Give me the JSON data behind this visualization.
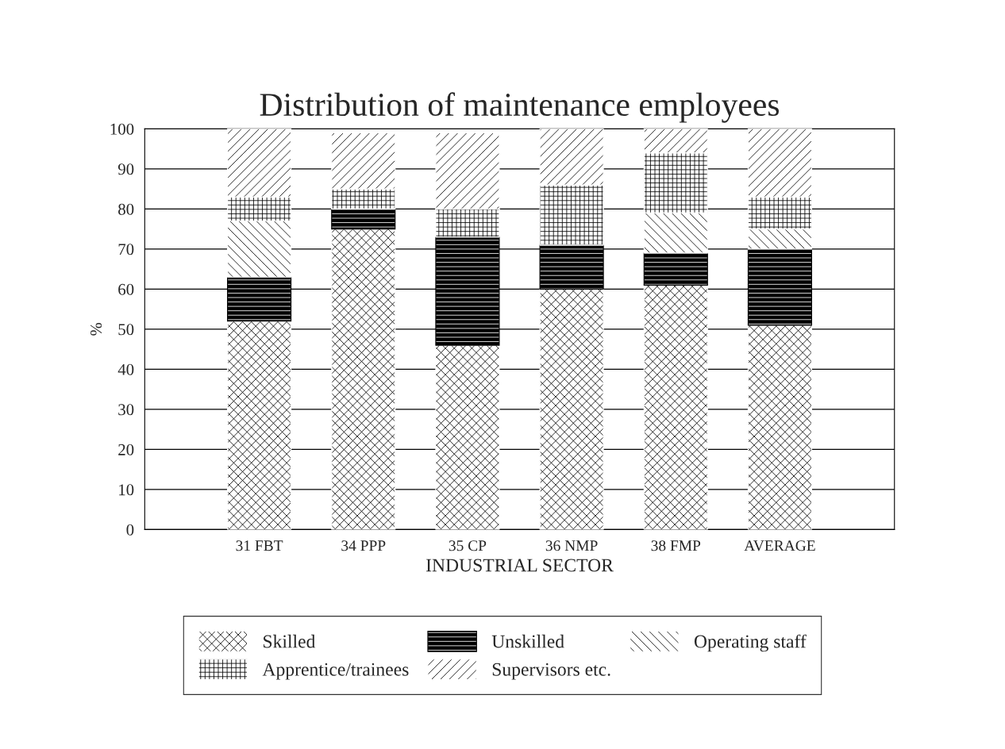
{
  "chart_data": {
    "type": "bar",
    "title": "Distribution of maintenance employees",
    "xlabel": "INDUSTRIAL SECTOR",
    "ylabel": "%",
    "categories": [
      "31 FBT",
      "34 PPP",
      "35 CP",
      "36 NMP",
      "38 FMP",
      "AVERAGE"
    ],
    "stacked": true,
    "series": [
      {
        "name": "Skilled",
        "color": "#ffffff",
        "values": [
          52,
          75,
          46,
          60,
          61,
          51
        ]
      },
      {
        "name": "Unskilled",
        "color": "#000000",
        "values": [
          11,
          5,
          27,
          11,
          8,
          19
        ]
      },
      {
        "name": "Operating staff",
        "color": "#ffffff",
        "values": [
          14,
          0,
          0,
          0,
          10,
          5
        ]
      },
      {
        "name": "Apprentice/trainees",
        "color": "#ffffff",
        "values": [
          6,
          5,
          7,
          15,
          15,
          8
        ]
      },
      {
        "name": "Supervisors etc.",
        "color": "#ffffff",
        "values": [
          17,
          14,
          19,
          14,
          6,
          17
        ]
      }
    ],
    "ylim": [
      0,
      100
    ],
    "yticks": [
      0,
      10,
      20,
      30,
      40,
      50,
      60,
      70,
      80,
      90,
      100
    ],
    "grid": "y",
    "legend": "bottom"
  }
}
